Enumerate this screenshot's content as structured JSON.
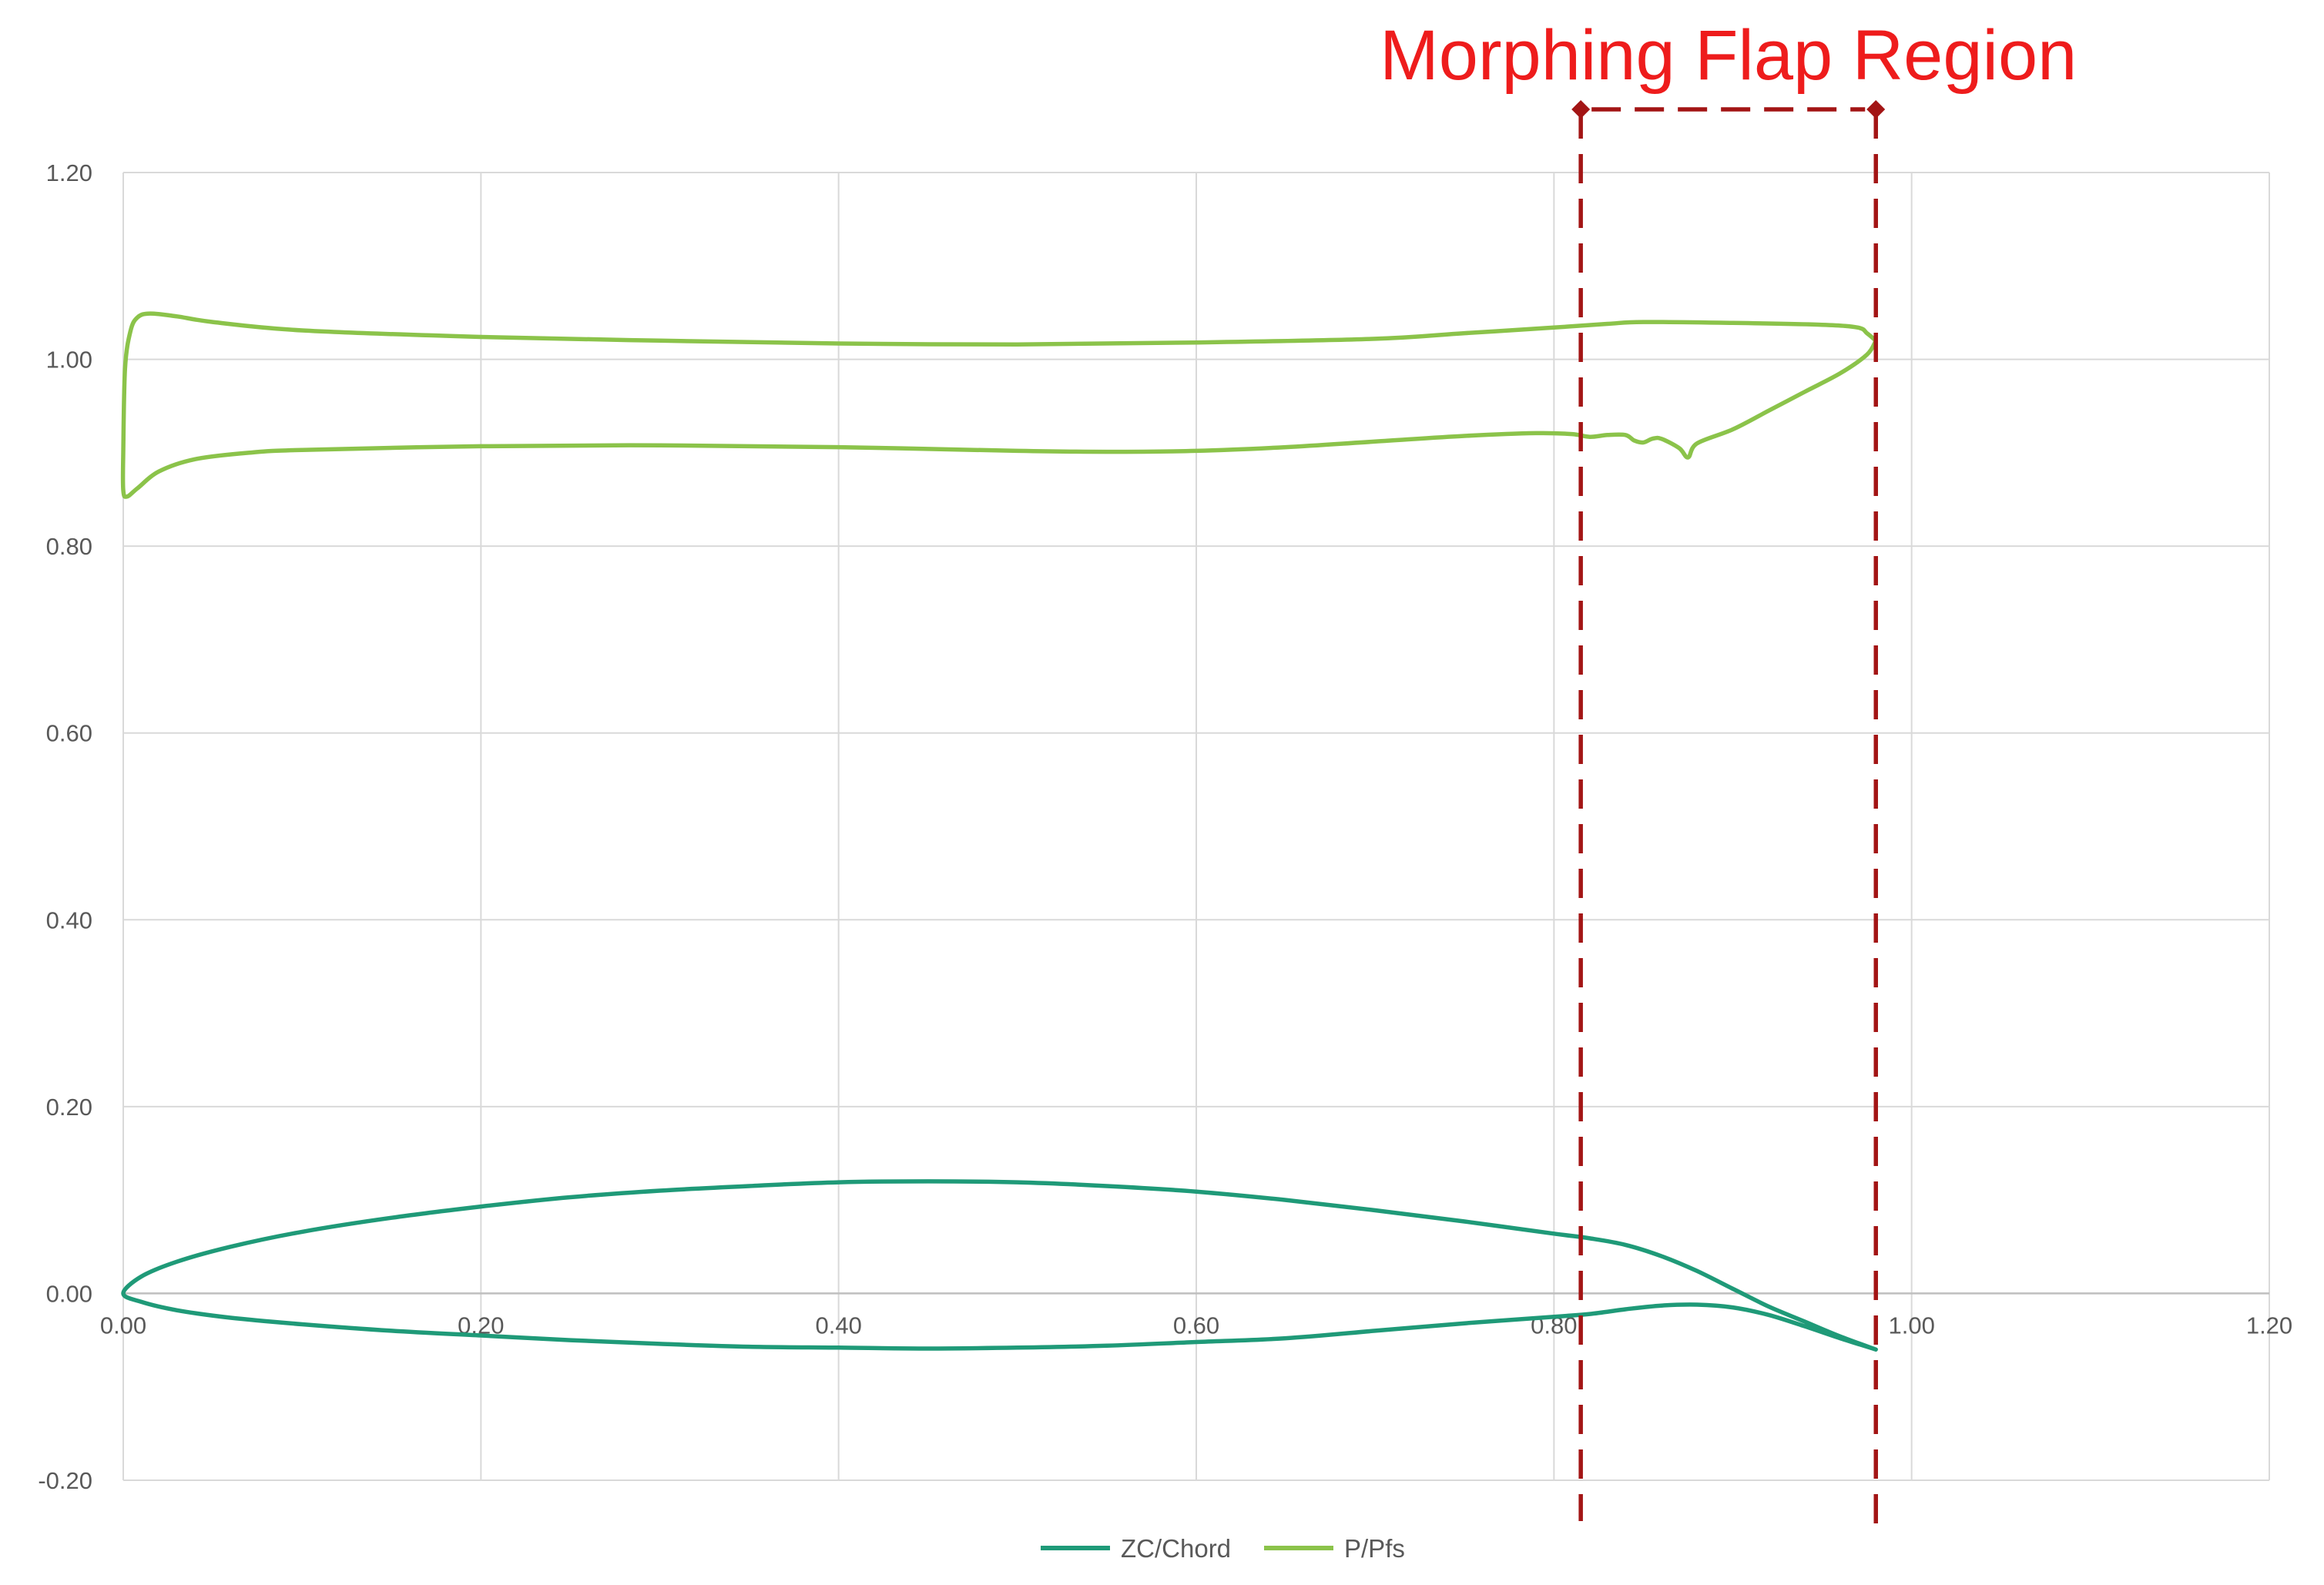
{
  "chart_data": {
    "type": "scatter",
    "subtype": "smooth-lines",
    "annotation": {
      "label": "Morphing Flap Region",
      "x_start": 0.815,
      "x_end": 0.98,
      "color": "#a31515",
      "label_color": "#ee1c1c"
    },
    "x_axis": {
      "min": 0.0,
      "max": 1.2,
      "ticks": [
        0.0,
        0.2,
        0.4,
        0.6,
        0.8,
        1.0,
        1.2
      ],
      "tick_labels": [
        "0.00",
        "0.20",
        "0.40",
        "0.60",
        "0.80",
        "1.00",
        "1.20"
      ]
    },
    "y_axis": {
      "min": -0.2,
      "max": 1.2,
      "ticks": [
        -0.2,
        0.0,
        0.2,
        0.4,
        0.6,
        0.8,
        1.0,
        1.2
      ],
      "tick_labels": [
        "-0.20",
        "0.00",
        "0.20",
        "0.40",
        "0.60",
        "0.80",
        "1.00",
        "1.20"
      ]
    },
    "grid": true,
    "legend": {
      "position": "bottom"
    },
    "series": [
      {
        "name": "ZC/Chord",
        "color": "#1f9a78",
        "points": [
          [
            0.98,
            -0.06
          ],
          [
            0.96,
            -0.048
          ],
          [
            0.94,
            -0.035
          ],
          [
            0.92,
            -0.023
          ],
          [
            0.9,
            -0.015
          ],
          [
            0.88,
            -0.012
          ],
          [
            0.86,
            -0.013
          ],
          [
            0.84,
            -0.017
          ],
          [
            0.82,
            -0.022
          ],
          [
            0.8,
            -0.025
          ],
          [
            0.75,
            -0.032
          ],
          [
            0.7,
            -0.04
          ],
          [
            0.65,
            -0.048
          ],
          [
            0.6,
            -0.052
          ],
          [
            0.55,
            -0.056
          ],
          [
            0.5,
            -0.058
          ],
          [
            0.45,
            -0.059
          ],
          [
            0.4,
            -0.058
          ],
          [
            0.35,
            -0.057
          ],
          [
            0.3,
            -0.054
          ],
          [
            0.25,
            -0.05
          ],
          [
            0.2,
            -0.045
          ],
          [
            0.15,
            -0.04
          ],
          [
            0.1,
            -0.033
          ],
          [
            0.06,
            -0.026
          ],
          [
            0.03,
            -0.018
          ],
          [
            0.01,
            -0.009
          ],
          [
            0.0,
            0.0
          ],
          [
            0.01,
            0.018
          ],
          [
            0.03,
            0.034
          ],
          [
            0.06,
            0.05
          ],
          [
            0.1,
            0.066
          ],
          [
            0.15,
            0.081
          ],
          [
            0.2,
            0.093
          ],
          [
            0.25,
            0.103
          ],
          [
            0.3,
            0.11
          ],
          [
            0.35,
            0.115
          ],
          [
            0.4,
            0.119
          ],
          [
            0.45,
            0.12
          ],
          [
            0.5,
            0.119
          ],
          [
            0.55,
            0.115
          ],
          [
            0.6,
            0.109
          ],
          [
            0.65,
            0.1
          ],
          [
            0.7,
            0.089
          ],
          [
            0.75,
            0.077
          ],
          [
            0.8,
            0.064
          ],
          [
            0.82,
            0.059
          ],
          [
            0.84,
            0.052
          ],
          [
            0.86,
            0.04
          ],
          [
            0.88,
            0.024
          ],
          [
            0.9,
            0.005
          ],
          [
            0.92,
            -0.014
          ],
          [
            0.94,
            -0.03
          ],
          [
            0.96,
            -0.046
          ],
          [
            0.98,
            -0.06
          ]
        ]
      },
      {
        "name": "P/Pfs",
        "color": "#8bc34a",
        "points": [
          [
            0.98,
            1.02
          ],
          [
            0.975,
            1.028
          ],
          [
            0.97,
            1.034
          ],
          [
            0.95,
            1.037
          ],
          [
            0.9,
            1.039
          ],
          [
            0.85,
            1.04
          ],
          [
            0.83,
            1.038
          ],
          [
            0.8,
            1.034
          ],
          [
            0.75,
            1.028
          ],
          [
            0.7,
            1.022
          ],
          [
            0.6,
            1.018
          ],
          [
            0.5,
            1.016
          ],
          [
            0.4,
            1.017
          ],
          [
            0.3,
            1.02
          ],
          [
            0.2,
            1.024
          ],
          [
            0.1,
            1.031
          ],
          [
            0.05,
            1.04
          ],
          [
            0.03,
            1.046
          ],
          [
            0.015,
            1.049
          ],
          [
            0.008,
            1.045
          ],
          [
            0.004,
            1.03
          ],
          [
            0.001,
            0.99
          ],
          [
            0.0,
            0.9
          ],
          [
            0.0,
            0.86
          ],
          [
            0.002,
            0.853
          ],
          [
            0.008,
            0.862
          ],
          [
            0.02,
            0.88
          ],
          [
            0.04,
            0.893
          ],
          [
            0.07,
            0.9
          ],
          [
            0.1,
            0.903
          ],
          [
            0.2,
            0.907
          ],
          [
            0.3,
            0.908
          ],
          [
            0.4,
            0.906
          ],
          [
            0.5,
            0.902
          ],
          [
            0.55,
            0.901
          ],
          [
            0.6,
            0.902
          ],
          [
            0.65,
            0.906
          ],
          [
            0.7,
            0.912
          ],
          [
            0.75,
            0.918
          ],
          [
            0.79,
            0.921
          ],
          [
            0.81,
            0.92
          ],
          [
            0.82,
            0.917
          ],
          [
            0.83,
            0.919
          ],
          [
            0.84,
            0.919
          ],
          [
            0.845,
            0.913
          ],
          [
            0.85,
            0.911
          ],
          [
            0.855,
            0.915
          ],
          [
            0.86,
            0.915
          ],
          [
            0.87,
            0.905
          ],
          [
            0.875,
            0.895
          ],
          [
            0.88,
            0.91
          ],
          [
            0.9,
            0.925
          ],
          [
            0.92,
            0.945
          ],
          [
            0.94,
            0.965
          ],
          [
            0.96,
            0.985
          ],
          [
            0.975,
            1.005
          ],
          [
            0.98,
            1.02
          ]
        ]
      }
    ]
  }
}
